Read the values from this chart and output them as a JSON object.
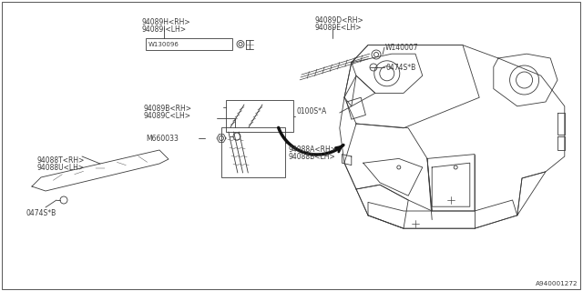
{
  "bg_color": "#ffffff",
  "line_color": "#3a3a3a",
  "text_color": "#3a3a3a",
  "diagram_id": "A940001272",
  "font_size": 5.5,
  "lw": 0.6,
  "labels": {
    "part1": "94089H<RH>\n94089I<LH>",
    "part2": "94089D<RH>\n94089E<LH>",
    "part3": "W130096",
    "part4": "W140007",
    "part5": "0474S*B",
    "part6": "94089B<RH>\n94089C<LH>",
    "part7": "0100S*A",
    "part8": "M660033",
    "part9": "94088T<RH>\n94088U<LH>",
    "part10": "94088A<RH>\n94088B<LH>",
    "part11": "0474S*B"
  }
}
